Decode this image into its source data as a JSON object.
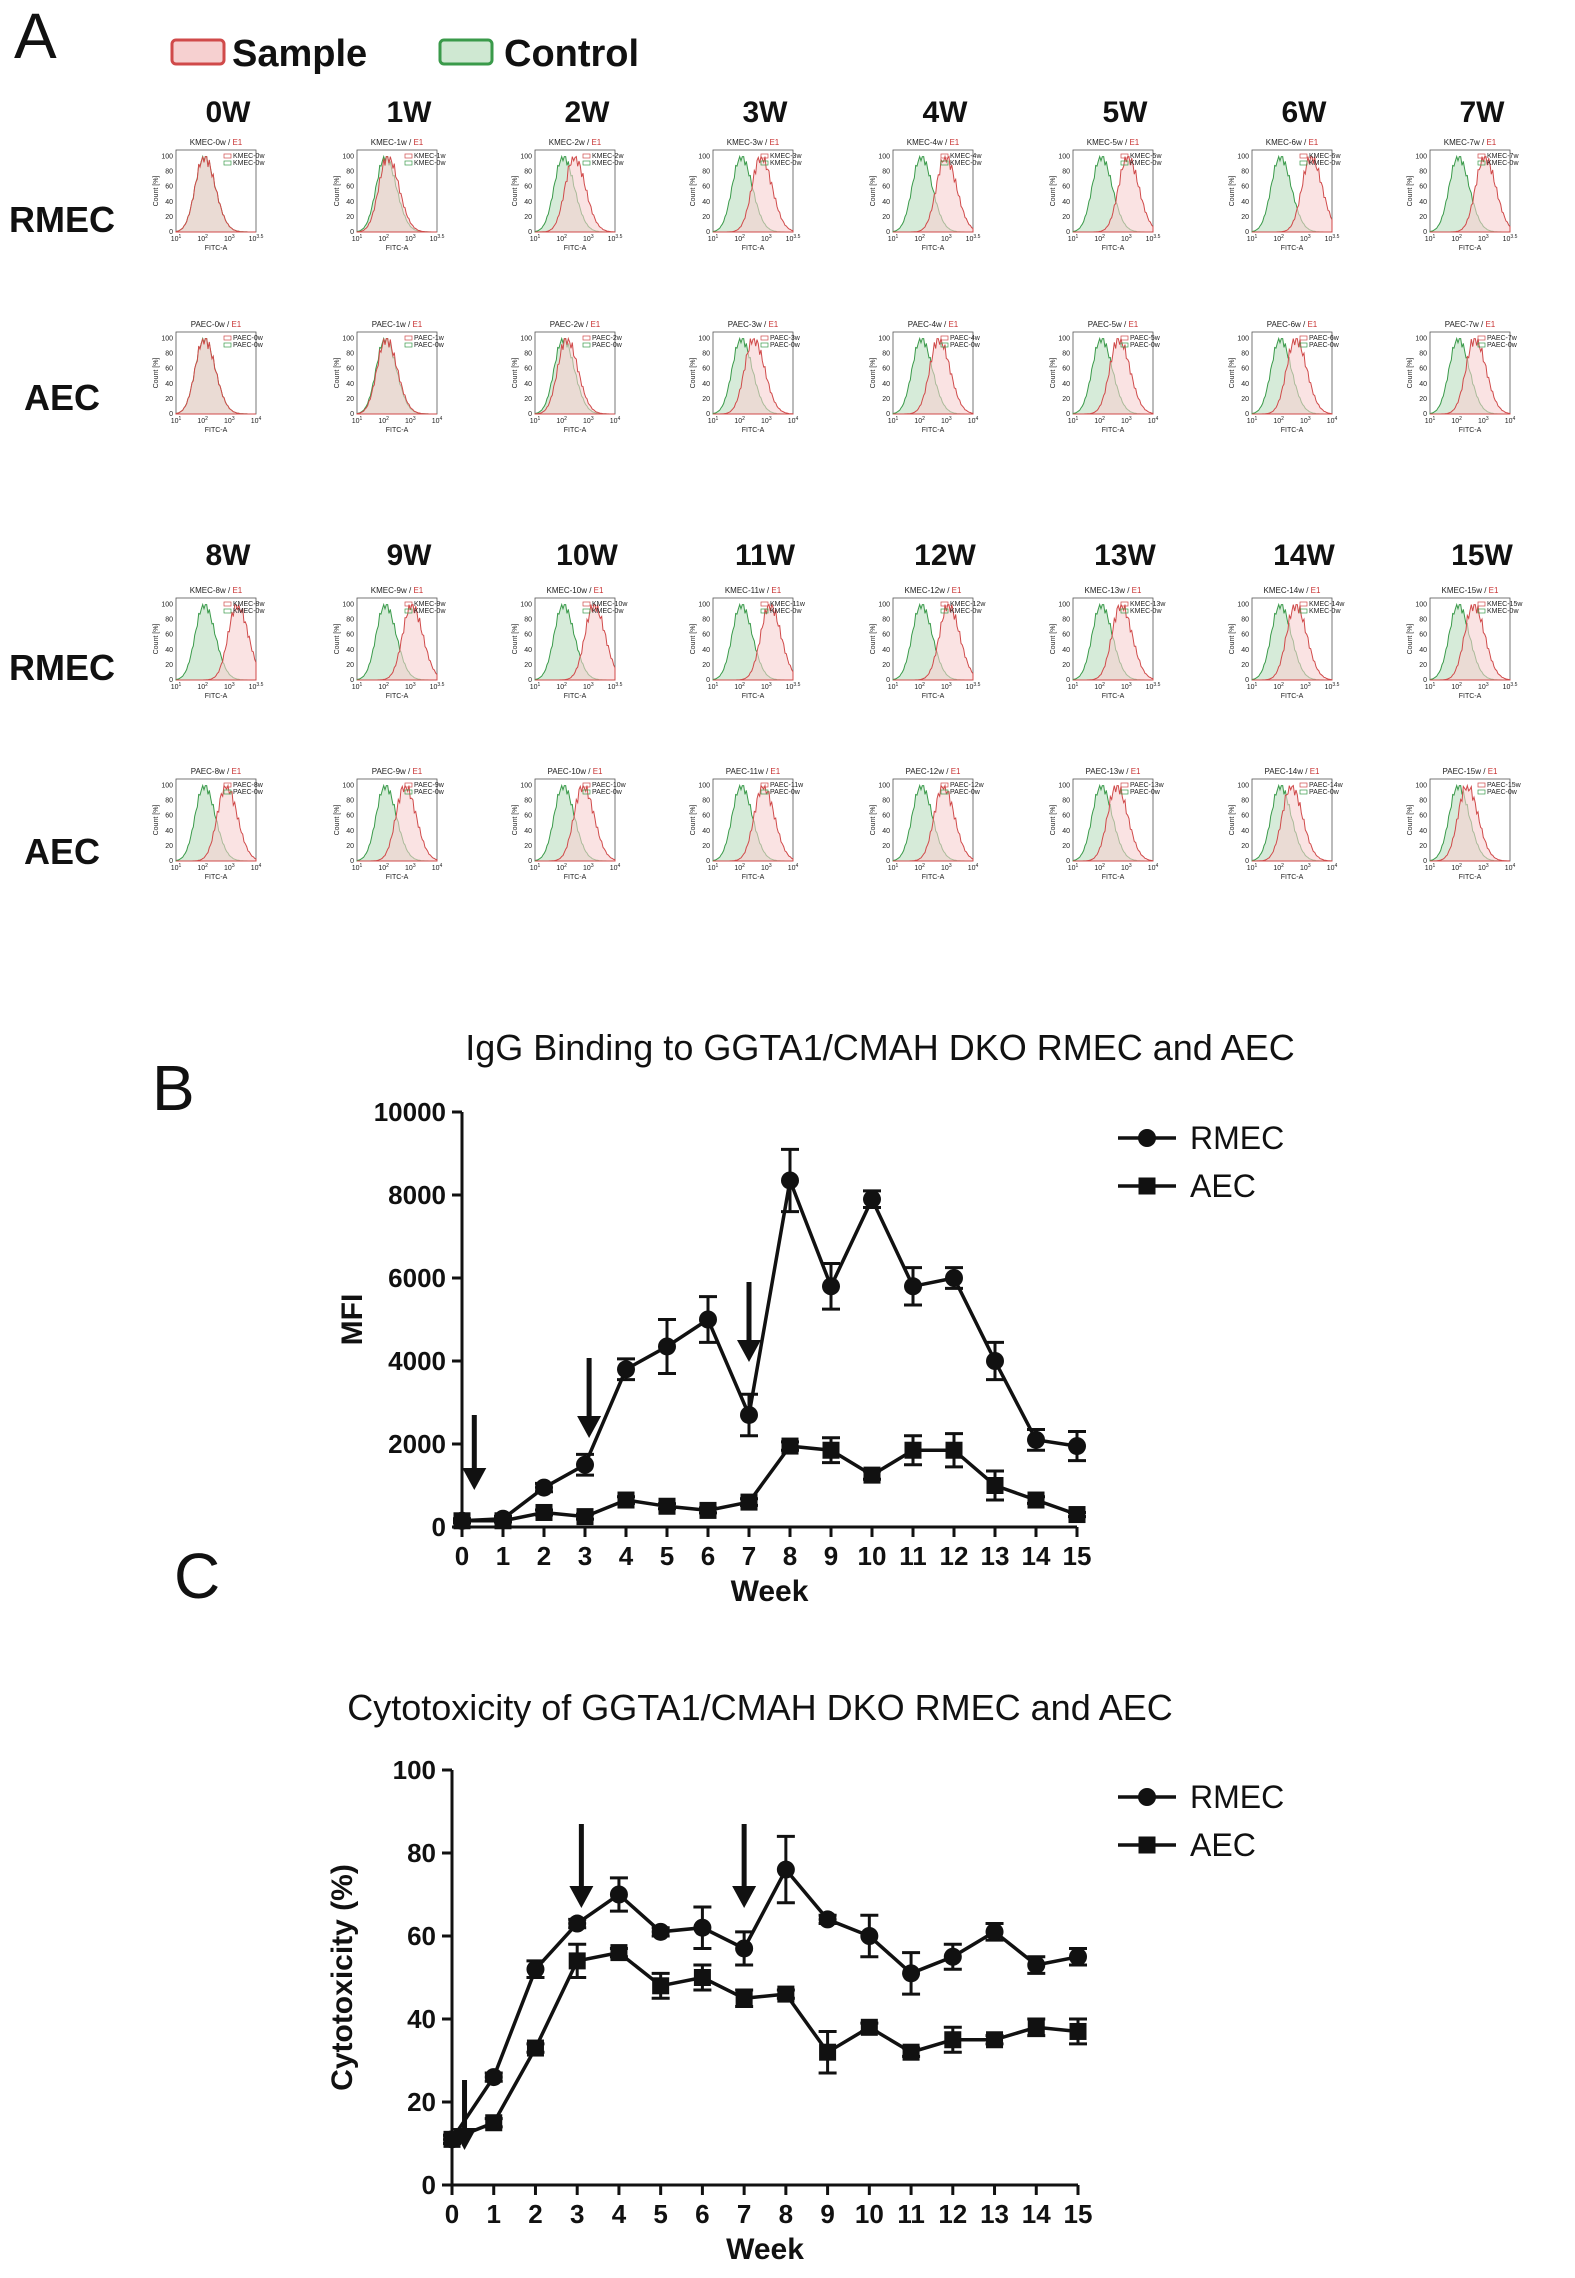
{
  "panel_a": {
    "letter": "A",
    "legend": {
      "sample": "Sample",
      "control": "Control"
    },
    "sample_color": "#d04a4a",
    "sample_fill": "#f6d0d0",
    "control_color": "#3a9a4a",
    "control_fill": "#cfe8d2",
    "x_axis_label": "FITC-A",
    "y_axis_label": "Count [%]",
    "gate_label": "E1",
    "y_ticks": [
      "0",
      "20",
      "40",
      "60",
      "80",
      "100"
    ],
    "rows": [
      {
        "cell": "RMEC",
        "prefix": "KMEC",
        "weeks": [
          "0W",
          "1W",
          "2W",
          "3W",
          "4W",
          "5W",
          "6W",
          "7W"
        ],
        "shift": [
          0,
          0.06,
          0.25,
          0.45,
          0.55,
          0.6,
          0.7,
          0.6
        ],
        "x_max": [
          "3.5",
          "3.5",
          "3.5",
          "3.5",
          "3.5",
          "3.5",
          "3.5",
          "3.5"
        ]
      },
      {
        "cell": "AEC",
        "prefix": "PAEC",
        "weeks": [
          "0W",
          "1W",
          "2W",
          "3W",
          "4W",
          "5W",
          "6W",
          "7W"
        ],
        "shift": [
          0,
          0.02,
          0.08,
          0.28,
          0.4,
          0.4,
          0.35,
          0.38
        ],
        "x_max": [
          "4",
          "4",
          "4",
          "4",
          "4",
          "4",
          "4",
          "4"
        ]
      },
      {
        "cell": "RMEC",
        "prefix": "KMEC",
        "weeks": [
          "8W",
          "9W",
          "10W",
          "11W",
          "12W",
          "13W",
          "14W",
          "15W"
        ],
        "shift": [
          0.75,
          0.6,
          0.7,
          0.65,
          0.62,
          0.45,
          0.35,
          0.35
        ],
        "x_max": [
          "3.5",
          "3.5",
          "3.5",
          "3.5",
          "3.5",
          "3.5",
          "3.5",
          "3.5"
        ]
      },
      {
        "cell": "AEC",
        "prefix": "PAEC",
        "weeks": [
          "8W",
          "9W",
          "10W",
          "11W",
          "12W",
          "13W",
          "14W",
          "15W"
        ],
        "shift": [
          0.5,
          0.45,
          0.45,
          0.5,
          0.5,
          0.35,
          0.25,
          0.2
        ],
        "x_max": [
          "4",
          "4",
          "4",
          "4",
          "4",
          "4",
          "4",
          "4"
        ]
      }
    ]
  },
  "chart_data": [
    {
      "panel": "B",
      "type": "line",
      "title": "IgG Binding to GGTA1/CMAH DKO RMEC and AEC",
      "xlabel": "Week",
      "ylabel": "MFI",
      "x": [
        0,
        1,
        2,
        3,
        4,
        5,
        6,
        7,
        8,
        9,
        10,
        11,
        12,
        13,
        14,
        15
      ],
      "ylim": [
        0,
        10000
      ],
      "yticks": [
        0,
        2000,
        4000,
        6000,
        8000,
        10000
      ],
      "legend_position": "top-right",
      "arrows_at_week": [
        0.3,
        3.1,
        7
      ],
      "series": [
        {
          "name": "RMEC",
          "marker": "circle",
          "values": [
            150,
            200,
            950,
            1500,
            3800,
            4350,
            5000,
            2700,
            8350,
            5800,
            7900,
            5800,
            6000,
            4000,
            2100,
            1950
          ],
          "errors": [
            50,
            60,
            100,
            250,
            250,
            650,
            550,
            500,
            750,
            550,
            200,
            450,
            250,
            450,
            250,
            350
          ]
        },
        {
          "name": "AEC",
          "marker": "square",
          "values": [
            150,
            150,
            350,
            250,
            650,
            500,
            400,
            600,
            1950,
            1850,
            1250,
            1850,
            1850,
            1000,
            650,
            300
          ],
          "errors": [
            30,
            30,
            60,
            60,
            80,
            60,
            60,
            80,
            100,
            300,
            100,
            350,
            400,
            350,
            80,
            50
          ]
        }
      ]
    },
    {
      "panel": "C",
      "type": "line",
      "title": "Cytotoxicity of GGTA1/CMAH DKO RMEC and AEC",
      "xlabel": "Week",
      "ylabel": "Cytotoxicity (%)",
      "x": [
        0,
        1,
        2,
        3,
        4,
        5,
        6,
        7,
        8,
        9,
        10,
        11,
        12,
        13,
        14,
        15
      ],
      "ylim": [
        0,
        100
      ],
      "yticks": [
        0,
        20,
        40,
        60,
        80,
        100
      ],
      "legend_position": "top-right",
      "arrows_at_week": [
        0.3,
        3.1,
        7
      ],
      "series": [
        {
          "name": "RMEC",
          "marker": "circle",
          "values": [
            11,
            26,
            52,
            63,
            70,
            61,
            62,
            57,
            76,
            64,
            60,
            51,
            55,
            61,
            53,
            55
          ],
          "errors": [
            1,
            1,
            2,
            1,
            4,
            1,
            5,
            4,
            8,
            1,
            5,
            5,
            3,
            2,
            2,
            2
          ]
        },
        {
          "name": "AEC",
          "marker": "square",
          "values": [
            11,
            15,
            33,
            54,
            56,
            48,
            50,
            45,
            46,
            32,
            38,
            32,
            35,
            35,
            38,
            37
          ],
          "errors": [
            1,
            1,
            1,
            4,
            1,
            3,
            3,
            2,
            1,
            5,
            1,
            1,
            3,
            1,
            2,
            3
          ]
        }
      ]
    }
  ]
}
